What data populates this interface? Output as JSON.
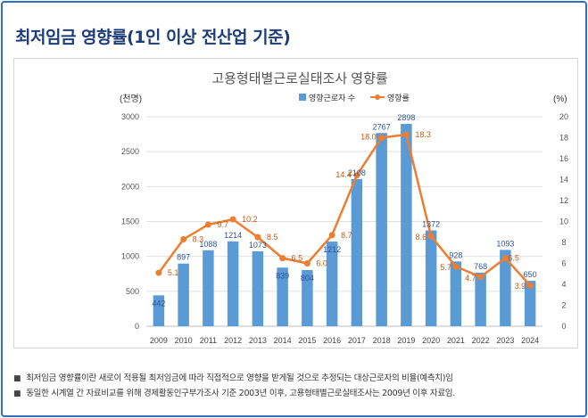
{
  "page": {
    "title": "최저임금 영향률(1인 이상 전산업 기준)"
  },
  "notes": [
    "최저임금 영향률이란 새로이 적용될 최저임금에 따라 직접적으로 영향을 받게될 것으로 추정되는 대상근로자의 비율(예측치)임",
    "동일한 시계열 간 자료비교를 위해 경제활동인구부가조사 기준 2003년 이후, 고용형태별근로실태조사는 2009년 이후 자료임."
  ],
  "chart_data": {
    "type": "bar+line",
    "title": "고용형태별근로실태조사 영향률",
    "ylabel_left": "(천명)",
    "ylabel_right": "(%)",
    "legend": {
      "position": "top-center"
    },
    "grid": true,
    "categories": [
      "2009",
      "2010",
      "2011",
      "2012",
      "2013",
      "2014",
      "2015",
      "2016",
      "2017",
      "2018",
      "2019",
      "2020",
      "2021",
      "2022",
      "2023",
      "2024"
    ],
    "bar_series": {
      "name": "영향근로자 수",
      "color": "#5b9bd5",
      "values": [
        442,
        897,
        1088,
        1214,
        1073,
        839,
        804,
        1212,
        2108,
        2767,
        2898,
        1372,
        928,
        768,
        1093,
        650
      ],
      "labels": [
        "442",
        "897",
        "1088",
        "1214",
        "1073",
        "839",
        "804",
        "1212",
        "2108",
        "2767",
        "2898",
        "1372",
        "928",
        "768",
        "1093",
        "650"
      ]
    },
    "line_series": {
      "name": "영향률",
      "color": "#ed7d31",
      "values": [
        5.1,
        8.3,
        9.7,
        10.2,
        8.5,
        6.5,
        6.0,
        8.7,
        14.4,
        18.0,
        18.3,
        8.6,
        5.7,
        4.7,
        6.5,
        3.9
      ],
      "labels": [
        "5.1",
        "8.3",
        "9.7",
        "10.2",
        "8.5",
        "6.5",
        "6.0",
        "8.7",
        "14.4",
        "18.0",
        "18.3",
        "8.6",
        "5.7",
        "4.7",
        "6.5",
        "3.9"
      ]
    },
    "y_left": {
      "min": 0,
      "max": 3000,
      "ticks": [
        "0",
        "500",
        "1000",
        "1500",
        "2000",
        "2500",
        "3000"
      ]
    },
    "y_right": {
      "min": 0,
      "max": 20,
      "ticks": [
        "0",
        "2",
        "4",
        "6",
        "8",
        "10",
        "12",
        "14",
        "16",
        "18",
        "20"
      ]
    }
  }
}
